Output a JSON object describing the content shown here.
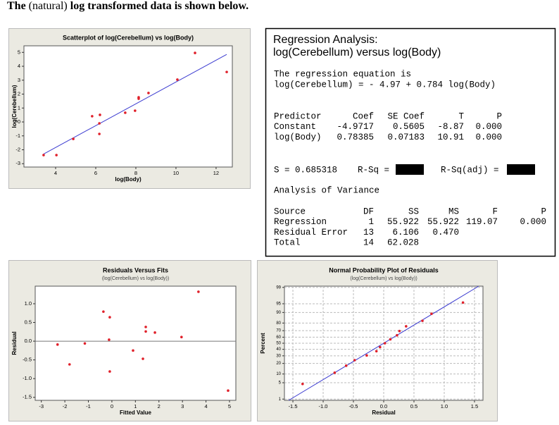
{
  "heading": {
    "parts": [
      "The",
      "(natural)",
      "log transformed data is shown below."
    ]
  },
  "chart_data": [
    {
      "type": "scatter",
      "title": "Scatterplot of log(Cerebellum) vs log(Body)",
      "xlabel": "log(Body)",
      "ylabel": "log(Cerebellum)",
      "x": [
        3.4,
        4.04,
        4.88,
        5.82,
        6.21,
        6.18,
        6.18,
        7.47,
        7.96,
        8.14,
        8.14,
        8.63,
        10.07,
        10.95,
        12.53
      ],
      "values": [
        -2.38,
        -2.38,
        -1.22,
        0.41,
        0.51,
        -0.1,
        -0.86,
        0.66,
        0.81,
        1.67,
        1.77,
        2.08,
        3.04,
        4.96,
        3.59
      ],
      "color": "#e0202a",
      "fit_line": {
        "intercept": -4.97,
        "slope": 0.784,
        "color": "#3a3ad0"
      },
      "xlim": [
        2.42,
        12.81
      ],
      "ylim": [
        -3.24,
        5.47
      ],
      "xticks": [
        4,
        6,
        8,
        10,
        12
      ],
      "yticks": [
        -3,
        -2,
        -1,
        0,
        1,
        2,
        3,
        4,
        5
      ],
      "grid": false
    },
    {
      "type": "scatter",
      "title": "Residuals Versus Fits",
      "subtitle": "(log(Cerebellum) vs log(Body))",
      "xlabel": "Fitted Value",
      "ylabel": "Residual",
      "x": [
        -2.31,
        -1.8,
        -1.15,
        -0.36,
        -0.09,
        -0.12,
        -0.09,
        0.9,
        1.32,
        1.44,
        1.44,
        1.83,
        2.96,
        3.68,
        4.94
      ],
      "values": [
        -0.09,
        -0.62,
        -0.06,
        0.79,
        0.64,
        0.04,
        -0.81,
        -0.25,
        -0.47,
        0.38,
        0.26,
        0.23,
        0.11,
        1.32,
        -1.32
      ],
      "color": "#e0202a",
      "reference_line_y": 0,
      "xlim": [
        -3.26,
        5.27
      ],
      "ylim": [
        -1.58,
        1.47
      ],
      "xticks": [
        -3,
        -2,
        -1,
        0,
        1,
        2,
        3,
        4,
        5
      ],
      "yticks": [
        -1.5,
        {
          "value": -1,
          "label": "-1.0"
        },
        -0.5,
        {
          "value": 0,
          "label": "0.0"
        },
        0.5,
        {
          "value": 1,
          "label": "1.0"
        }
      ],
      "grid": false
    },
    {
      "type": "scatter",
      "title": "Normal Probability Plot of Residuals",
      "subtitle": "(log(Cerebellum) vs log(Body))",
      "xlabel": "Residual",
      "ylabel": "Percent",
      "x": [
        -1.34,
        -0.81,
        -0.62,
        -0.48,
        -0.28,
        -0.12,
        -0.06,
        0.02,
        0.11,
        0.22,
        0.26,
        0.37,
        0.64,
        0.79,
        1.31
      ],
      "values": [
        4.5,
        11.0,
        17.5,
        24.0,
        30.5,
        37.0,
        43.5,
        50.0,
        56.5,
        63.0,
        69.5,
        76.0,
        82.5,
        89.0,
        95.5
      ],
      "color": "#e0202a",
      "yscale": "normal-probability",
      "fit_line": {
        "mean": 0,
        "sd": 0.66,
        "color": "#3a3ad0"
      },
      "xlim": [
        -1.64,
        1.64
      ],
      "ylim": [
        0.87,
        99.13
      ],
      "xticks": [
        -1.5,
        {
          "value": -1,
          "label": "-1.0"
        },
        -0.5,
        {
          "value": 0,
          "label": "0.0"
        },
        0.5,
        {
          "value": 1,
          "label": "1.0"
        },
        1.5
      ],
      "yticks": [
        1,
        5,
        10,
        20,
        30,
        40,
        50,
        60,
        70,
        80,
        90,
        95,
        99
      ],
      "grid": true
    }
  ],
  "regression": {
    "title": [
      "Regression Analysis:",
      "log(Cerebellum) versus log(Body)"
    ],
    "equation_heading": "The regression equation is",
    "equation": "log(Cerebellum) = - 4.97 + 0.784 log(Body)",
    "coef_table": {
      "header": [
        "Predictor",
        "Coef",
        "SE Coef",
        "T",
        "P"
      ],
      "rows": [
        [
          "Constant",
          "-4.9717",
          "0.5605",
          "-8.87",
          "0.000"
        ],
        [
          "log(Body)",
          "0.78385",
          "0.07183",
          "10.91",
          "0.000"
        ]
      ]
    },
    "fit_stats": {
      "s": "S = 0.685318",
      "rsq": "R-Sq =",
      "rsq_adj": "R-Sq(adj) ="
    },
    "anova_heading": "Analysis of Variance",
    "anova_table": {
      "header": [
        "Source",
        "DF",
        "SS",
        "MS",
        "F",
        "P"
      ],
      "rows": [
        [
          "Regression",
          "1",
          "55.922",
          "55.922",
          "119.07",
          "0.000"
        ],
        [
          "Residual Error",
          "13",
          "6.106",
          "0.470"
        ],
        [
          "Total",
          "14",
          "62.028"
        ]
      ]
    }
  }
}
